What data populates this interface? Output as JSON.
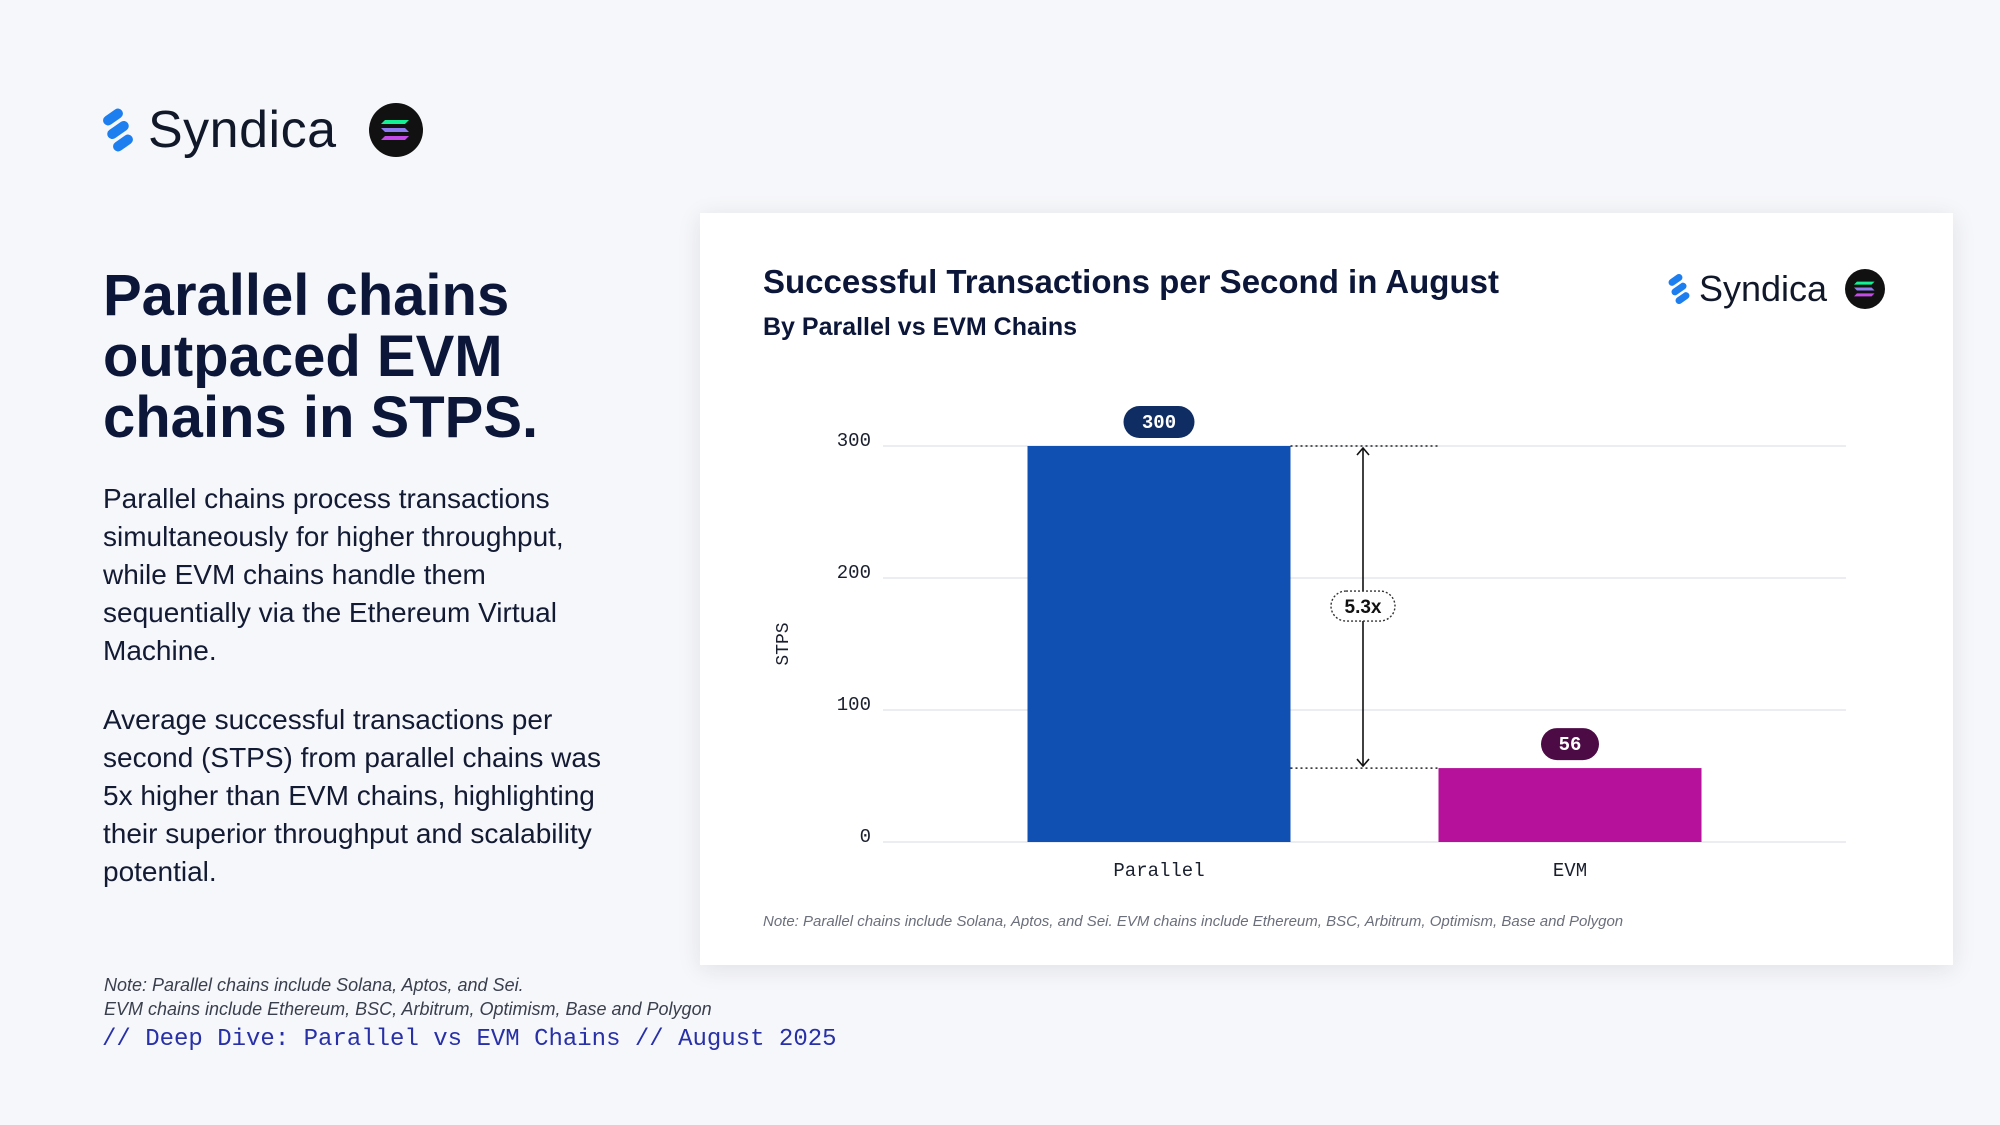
{
  "brand": {
    "name": "Syndica"
  },
  "headline": "Parallel chains outpaced EVM chains in STPS.",
  "paragraphs": [
    "Parallel chains process transactions simultaneously for higher throughput, while EVM chains handle them sequentially via the Ethereum Virtual Machine.",
    "Average successful transactions per second (STPS) from parallel chains was 5x higher than EVM chains, highlighting their superior throughput and scalability potential."
  ],
  "footnote": {
    "line1": "Note: Parallel chains include Solana, Aptos, and Sei.",
    "line2": "EVM chains include Ethereum, BSC, Arbitrum, Optimism, Base and Polygon"
  },
  "series_tag": "// Deep Dive: Parallel vs EVM Chains // August 2025",
  "colors": {
    "parallel": "#1150b3",
    "evm": "#b5119a",
    "badge_parallel": "#0f2d63",
    "badge_evm": "#4d0b45",
    "brand_blue": "#1d7ef0"
  },
  "chart_data": {
    "type": "bar",
    "title": "Successful Transactions per Second in August",
    "subtitle": "By Parallel vs EVM Chains",
    "categories": [
      "Parallel",
      "EVM"
    ],
    "values": [
      300,
      56
    ],
    "value_labels": [
      "300",
      "56"
    ],
    "xlabel": "",
    "ylabel": "STPS",
    "ylim": [
      0,
      300
    ],
    "yticks": [
      0,
      100,
      200,
      300
    ],
    "ytick_labels": [
      "0",
      "100",
      "200",
      "300"
    ],
    "grid": true,
    "annotation": {
      "label": "5.3x",
      "from_value": 56,
      "to_value": 300
    },
    "note": "Note: Parallel chains include Solana, Aptos, and Sei. EVM chains include Ethereum, BSC, Arbitrum, Optimism, Base and Polygon"
  }
}
